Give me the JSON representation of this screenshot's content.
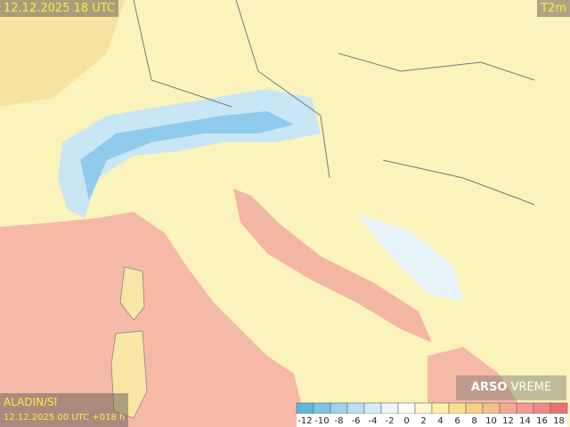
{
  "header": {
    "valid_time": "12.12.2025 18 UTC",
    "field": "T2m"
  },
  "footer": {
    "model": "ALADIN/SI",
    "run": "12.12.2025 00 UTC +018 h",
    "logo_bold": "ARSO",
    "logo_light": "VREME"
  },
  "legend": {
    "ticks": [
      -12,
      -10,
      -8,
      -6,
      -4,
      -2,
      0,
      2,
      4,
      6,
      8,
      10,
      12,
      14,
      16,
      18
    ],
    "colors": [
      "#5cb6e0",
      "#7cc5ea",
      "#9dd3f0",
      "#bae0f4",
      "#d6ecf8",
      "#eef5fa",
      "#ffffff",
      "#fff8d2",
      "#fff0a8",
      "#fbe092",
      "#f8d084",
      "#f6c08a",
      "#f4aa92",
      "#f39a98",
      "#f08a8a",
      "#ec7272"
    ]
  }
}
